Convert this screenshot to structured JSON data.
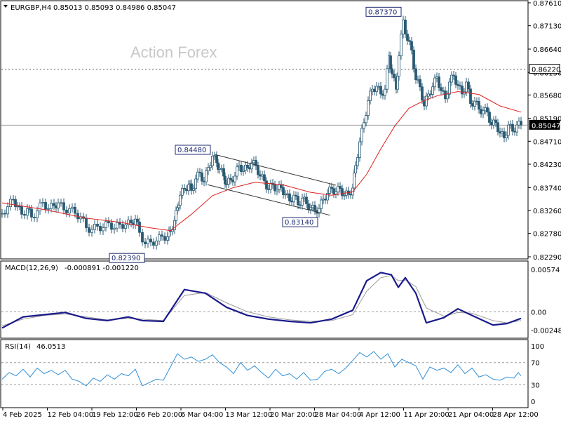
{
  "header": {
    "symbol_info": "EURGBP,H4",
    "ohlc": "0.85013 0.85093 0.84986 0.85047"
  },
  "watermark": "Action Forex",
  "chart_data": [
    {
      "type": "candlestick",
      "panel": "price",
      "symbol": "EURGBP",
      "timeframe": "H4",
      "ylim": [
        0.8229,
        0.8761
      ],
      "y_ticks": [
        "0.87610",
        "0.87130",
        "0.86640",
        "0.86150",
        "0.85680",
        "0.85190",
        "0.84710",
        "0.84230",
        "0.83740",
        "0.83260",
        "0.82780",
        "0.82290"
      ],
      "x_ticks": [
        "4 Feb 2025",
        "12 Feb 04:00",
        "19 Feb 12:00",
        "26 Feb 20:00",
        "6 Mar 04:00",
        "13 Mar 12:00",
        "20 Mar 20:00",
        "28 Mar 04:00",
        "4 Apr 12:00",
        "11 Apr 20:00",
        "21 Apr 04:00",
        "28 Apr 12:00"
      ],
      "close_path": [
        [
          0,
          0.832
        ],
        [
          8,
          0.8334
        ],
        [
          16,
          0.8349
        ],
        [
          22,
          0.8335
        ],
        [
          28,
          0.8318
        ],
        [
          36,
          0.833
        ],
        [
          42,
          0.8312
        ],
        [
          50,
          0.8325
        ],
        [
          58,
          0.8343
        ],
        [
          66,
          0.833
        ],
        [
          74,
          0.8336
        ],
        [
          80,
          0.8342
        ],
        [
          88,
          0.8327
        ],
        [
          96,
          0.833
        ],
        [
          104,
          0.832
        ],
        [
          112,
          0.8313
        ],
        [
          120,
          0.829
        ],
        [
          128,
          0.8286
        ],
        [
          136,
          0.8293
        ],
        [
          144,
          0.829
        ],
        [
          152,
          0.83
        ],
        [
          160,
          0.8289
        ],
        [
          168,
          0.8297
        ],
        [
          176,
          0.8296
        ],
        [
          184,
          0.83
        ],
        [
          190,
          0.8308
        ],
        [
          196,
          0.828
        ],
        [
          204,
          0.8256
        ],
        [
          212,
          0.826
        ],
        [
          220,
          0.8262
        ],
        [
          228,
          0.8272
        ],
        [
          236,
          0.8271
        ],
        [
          240,
          0.8282
        ],
        [
          246,
          0.8305
        ],
        [
          250,
          0.8332
        ],
        [
          254,
          0.8358
        ],
        [
          260,
          0.8371
        ],
        [
          266,
          0.838
        ],
        [
          270,
          0.8368
        ],
        [
          276,
          0.8392
        ],
        [
          282,
          0.8405
        ],
        [
          288,
          0.8386
        ],
        [
          294,
          0.8416
        ],
        [
          300,
          0.844
        ],
        [
          306,
          0.8426
        ],
        [
          310,
          0.8414
        ],
        [
          316,
          0.8398
        ],
        [
          320,
          0.8381
        ],
        [
          326,
          0.839
        ],
        [
          332,
          0.8398
        ],
        [
          338,
          0.8421
        ],
        [
          344,
          0.841
        ],
        [
          350,
          0.8416
        ],
        [
          356,
          0.8426
        ],
        [
          362,
          0.842
        ],
        [
          368,
          0.8398
        ],
        [
          374,
          0.8388
        ],
        [
          380,
          0.837
        ],
        [
          386,
          0.838
        ],
        [
          392,
          0.837
        ],
        [
          398,
          0.8374
        ],
        [
          404,
          0.836
        ],
        [
          410,
          0.8346
        ],
        [
          416,
          0.8358
        ],
        [
          422,
          0.8338
        ],
        [
          428,
          0.8352
        ],
        [
          434,
          0.834
        ],
        [
          440,
          0.8332
        ],
        [
          446,
          0.8326
        ],
        [
          452,
          0.833
        ],
        [
          458,
          0.835
        ],
        [
          464,
          0.8362
        ],
        [
          470,
          0.8372
        ],
        [
          476,
          0.8365
        ],
        [
          482,
          0.8372
        ],
        [
          488,
          0.8358
        ],
        [
          494,
          0.836
        ],
        [
          500,
          0.8373
        ],
        [
          504,
          0.842
        ],
        [
          510,
          0.847
        ],
        [
          516,
          0.851
        ],
        [
          522,
          0.8556
        ],
        [
          528,
          0.858
        ],
        [
          534,
          0.8586
        ],
        [
          540,
          0.857
        ],
        [
          546,
          0.858
        ],
        [
          552,
          0.865
        ],
        [
          556,
          0.8612
        ],
        [
          562,
          0.858
        ],
        [
          566,
          0.865
        ],
        [
          572,
          0.8725
        ],
        [
          578,
          0.8682
        ],
        [
          584,
          0.8662
        ],
        [
          590,
          0.86
        ],
        [
          596,
          0.8585
        ],
        [
          602,
          0.8545
        ],
        [
          608,
          0.857
        ],
        [
          614,
          0.8585
        ],
        [
          620,
          0.8606
        ],
        [
          626,
          0.8577
        ],
        [
          632,
          0.856
        ],
        [
          638,
          0.8595
        ],
        [
          644,
          0.8608
        ],
        [
          650,
          0.8588
        ],
        [
          656,
          0.857
        ],
        [
          662,
          0.8595
        ],
        [
          668,
          0.855
        ],
        [
          674,
          0.8555
        ],
        [
          680,
          0.8538
        ],
        [
          686,
          0.8535
        ],
        [
          692,
          0.8532
        ],
        [
          698,
          0.8505
        ],
        [
          704,
          0.851
        ],
        [
          710,
          0.8488
        ],
        [
          716,
          0.8478
        ],
        [
          722,
          0.8505
        ],
        [
          728,
          0.8492
        ],
        [
          734,
          0.8505
        ],
        [
          740,
          0.8505
        ]
      ],
      "moving_average": {
        "color": "#e0201f",
        "path": [
          [
            0,
            0.8342
          ],
          [
            60,
            0.8328
          ],
          [
            120,
            0.831
          ],
          [
            170,
            0.8301
          ],
          [
            210,
            0.829
          ],
          [
            240,
            0.8284
          ],
          [
            270,
            0.8318
          ],
          [
            300,
            0.8357
          ],
          [
            330,
            0.8374
          ],
          [
            360,
            0.8385
          ],
          [
            400,
            0.838
          ],
          [
            440,
            0.8364
          ],
          [
            470,
            0.8358
          ],
          [
            500,
            0.8365
          ],
          [
            520,
            0.8402
          ],
          [
            540,
            0.8455
          ],
          [
            560,
            0.8503
          ],
          [
            580,
            0.854
          ],
          [
            600,
            0.8555
          ],
          [
            620,
            0.8566
          ],
          [
            650,
            0.8575
          ],
          [
            680,
            0.8569
          ],
          [
            710,
            0.8545
          ],
          [
            740,
            0.8532
          ]
        ]
      },
      "horizontal_levels": [
        {
          "value": 0.8622,
          "label": "0.86220",
          "style": "dashed"
        },
        {
          "value": 0.85047,
          "label": "0.85047",
          "style": "solid-current"
        }
      ],
      "annotations": [
        {
          "label": "0.87370",
          "x": 572,
          "value": 0.8737
        },
        {
          "label": "0.84480",
          "x": 299,
          "value": 0.8448
        },
        {
          "label": "0.83140",
          "x": 446,
          "value": 0.8314
        },
        {
          "label": "0.82390",
          "x": 199,
          "value": 0.8239
        }
      ],
      "channel": {
        "upper": [
          [
            304,
            0.8443
          ],
          [
            476,
            0.8379
          ]
        ],
        "lower": [
          [
            293,
            0.838
          ],
          [
            468,
            0.8316
          ]
        ]
      }
    },
    {
      "type": "line",
      "panel": "macd",
      "name": "MACD(12,26,9)",
      "values_text": "-0.000891 -0.001220",
      "ylim": [
        -0.0032,
        0.0061
      ],
      "y_ticks": [
        "0.00574",
        "0.00",
        "-0.002485"
      ],
      "levels": [
        0.0
      ],
      "macd_path": [
        [
          0,
          -0.0022
        ],
        [
          30,
          -0.0007
        ],
        [
          60,
          -0.0004
        ],
        [
          90,
          -0.0001
        ],
        [
          120,
          -0.0009
        ],
        [
          150,
          -0.0012
        ],
        [
          180,
          -0.0007
        ],
        [
          200,
          -0.0012
        ],
        [
          230,
          -0.0013
        ],
        [
          260,
          0.003
        ],
        [
          290,
          0.0025
        ],
        [
          320,
          0.0006
        ],
        [
          350,
          -0.0005
        ],
        [
          380,
          -0.001
        ],
        [
          410,
          -0.0013
        ],
        [
          440,
          -0.0015
        ],
        [
          470,
          -0.001
        ],
        [
          500,
          0.0002
        ],
        [
          520,
          0.0042
        ],
        [
          540,
          0.0053
        ],
        [
          555,
          0.005
        ],
        [
          565,
          0.0033
        ],
        [
          575,
          0.0046
        ],
        [
          590,
          0.0025
        ],
        [
          605,
          -0.0015
        ],
        [
          630,
          -0.0008
        ],
        [
          650,
          0.0004
        ],
        [
          670,
          -0.0005
        ],
        [
          700,
          -0.0018
        ],
        [
          720,
          -0.0016
        ],
        [
          740,
          -0.0009
        ]
      ],
      "signal_path": [
        [
          0,
          -0.0019
        ],
        [
          30,
          -0.001
        ],
        [
          60,
          -0.0005
        ],
        [
          90,
          -0.0003
        ],
        [
          120,
          -0.0007
        ],
        [
          150,
          -0.0011
        ],
        [
          180,
          -0.0009
        ],
        [
          200,
          -0.001
        ],
        [
          230,
          -0.0012
        ],
        [
          260,
          0.0022
        ],
        [
          290,
          0.0026
        ],
        [
          320,
          0.0012
        ],
        [
          350,
          0.0
        ],
        [
          380,
          -0.0007
        ],
        [
          410,
          -0.0011
        ],
        [
          440,
          -0.0013
        ],
        [
          470,
          -0.0012
        ],
        [
          500,
          -0.0004
        ],
        [
          520,
          0.0028
        ],
        [
          540,
          0.0046
        ],
        [
          555,
          0.0049
        ],
        [
          565,
          0.0042
        ],
        [
          575,
          0.0043
        ],
        [
          590,
          0.0034
        ],
        [
          605,
          0.0005
        ],
        [
          630,
          -0.0006
        ],
        [
          650,
          -0.0001
        ],
        [
          670,
          -0.0002
        ],
        [
          700,
          -0.0012
        ],
        [
          720,
          -0.0015
        ],
        [
          740,
          -0.0012
        ]
      ]
    },
    {
      "type": "line",
      "panel": "rsi",
      "name": "RSI(14)",
      "values_text": "46.0513",
      "ylim": [
        0,
        100
      ],
      "y_ticks": [
        "100",
        "70",
        "30",
        "0"
      ],
      "levels": [
        70,
        30
      ],
      "rsi_path": [
        [
          0,
          40
        ],
        [
          10,
          52
        ],
        [
          20,
          46
        ],
        [
          30,
          58
        ],
        [
          40,
          44
        ],
        [
          50,
          60
        ],
        [
          60,
          50
        ],
        [
          70,
          56
        ],
        [
          80,
          48
        ],
        [
          90,
          56
        ],
        [
          100,
          40
        ],
        [
          110,
          36
        ],
        [
          120,
          28
        ],
        [
          130,
          42
        ],
        [
          140,
          36
        ],
        [
          150,
          48
        ],
        [
          160,
          40
        ],
        [
          170,
          50
        ],
        [
          180,
          46
        ],
        [
          190,
          58
        ],
        [
          200,
          28
        ],
        [
          210,
          34
        ],
        [
          220,
          40
        ],
        [
          230,
          38
        ],
        [
          240,
          62
        ],
        [
          250,
          86
        ],
        [
          260,
          76
        ],
        [
          270,
          80
        ],
        [
          280,
          72
        ],
        [
          290,
          76
        ],
        [
          300,
          84
        ],
        [
          310,
          70
        ],
        [
          320,
          62
        ],
        [
          330,
          50
        ],
        [
          340,
          70
        ],
        [
          350,
          56
        ],
        [
          360,
          64
        ],
        [
          370,
          52
        ],
        [
          380,
          42
        ],
        [
          390,
          58
        ],
        [
          400,
          46
        ],
        [
          410,
          50
        ],
        [
          420,
          40
        ],
        [
          430,
          52
        ],
        [
          440,
          38
        ],
        [
          450,
          40
        ],
        [
          460,
          54
        ],
        [
          470,
          58
        ],
        [
          480,
          50
        ],
        [
          490,
          60
        ],
        [
          500,
          74
        ],
        [
          510,
          88
        ],
        [
          520,
          80
        ],
        [
          530,
          90
        ],
        [
          540,
          76
        ],
        [
          550,
          86
        ],
        [
          560,
          62
        ],
        [
          570,
          76
        ],
        [
          580,
          70
        ],
        [
          590,
          64
        ],
        [
          600,
          40
        ],
        [
          610,
          62
        ],
        [
          620,
          56
        ],
        [
          630,
          60
        ],
        [
          640,
          52
        ],
        [
          650,
          66
        ],
        [
          660,
          50
        ],
        [
          670,
          60
        ],
        [
          680,
          44
        ],
        [
          690,
          48
        ],
        [
          700,
          40
        ],
        [
          710,
          38
        ],
        [
          720,
          44
        ],
        [
          730,
          42
        ],
        [
          736,
          52
        ],
        [
          740,
          46
        ]
      ]
    }
  ]
}
